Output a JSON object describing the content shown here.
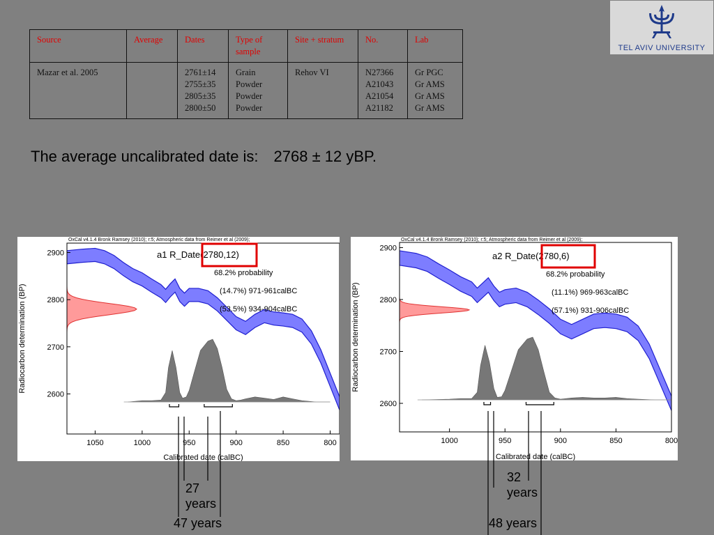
{
  "logo": {
    "text": "TEL AVIV UNIVERSITY",
    "color": "#1e3a8a",
    "icon": "menorah-emblem-icon"
  },
  "table": {
    "headers": [
      "Source",
      "Average",
      "Dates",
      "Type of sample",
      "Site + stratum",
      "No.",
      "Lab"
    ],
    "row": {
      "source": "Mazar et al. 2005",
      "average": "",
      "dates": [
        "2761±14",
        "2755±35",
        "2805±35",
        "2800±50"
      ],
      "types": [
        "Grain",
        "Powder",
        "Powder",
        "Powder"
      ],
      "site": "Rehov VI",
      "numbers": [
        "N27366",
        "A21043",
        "A21054",
        "A21182"
      ],
      "labs": [
        "Gr PGC",
        "Gr AMS",
        "Gr AMS",
        "Gr AMS"
      ]
    },
    "header_color": "#e00000"
  },
  "summary": {
    "label": "The average uncalibrated date is:",
    "value": "2768 ± 12 yBP."
  },
  "annotations": {
    "left_inner": "27 years",
    "left_outer": "47 years",
    "right_inner": "32 years",
    "right_outer": "48 years"
  },
  "chart_data": [
    {
      "type": "area",
      "credit": "OxCal v4.1.4 Bronk Ramsey (2010); r:5; Atmospheric data from Reimer et al (2009);",
      "title": "a1 R_Date(2780,12)",
      "title_prefix": "a1 R_Date",
      "title_highlight": "(2780,12)",
      "probability_label": "68.2% probability",
      "ranges": [
        "(14.7%) 971-961calBC",
        "(53.5%) 934-904calBC"
      ],
      "ylabel": "Radiocarbon determination (BP)",
      "xlabel": "Calibrated date (calBC)",
      "xlim": [
        1080,
        790
      ],
      "ylim": [
        2515,
        2920
      ],
      "x_ticks": [
        1050,
        1000,
        950,
        900,
        850,
        800
      ],
      "y_ticks": [
        2600,
        2700,
        2800,
        2900
      ],
      "radiocarbon": {
        "mean": 2780,
        "sd": 12
      },
      "calibration_curve": {
        "name": "IntCal09",
        "x": [
          1080,
          1065,
          1050,
          1040,
          1030,
          1020,
          1010,
          1000,
          990,
          980,
          975,
          970,
          965,
          960,
          955,
          950,
          940,
          930,
          920,
          910,
          900,
          890,
          880,
          870,
          860,
          850,
          840,
          830,
          820,
          810,
          800,
          790
        ],
        "y": [
          2890,
          2893,
          2895,
          2890,
          2880,
          2865,
          2852,
          2843,
          2830,
          2818,
          2808,
          2820,
          2830,
          2810,
          2800,
          2810,
          2810,
          2805,
          2790,
          2770,
          2750,
          2740,
          2755,
          2765,
          2760,
          2758,
          2755,
          2745,
          2720,
          2680,
          2630,
          2580
        ],
        "band_halfwidth": 14,
        "color": "#6666ff",
        "line_color": "#1f1fcf"
      },
      "calibrated_distribution": {
        "x": [
          1015,
          1000,
          990,
          980,
          975,
          972,
          968,
          964,
          960,
          957,
          953,
          950,
          945,
          938,
          930,
          925,
          920,
          915,
          910,
          905,
          900,
          895,
          890,
          880,
          870,
          860,
          850,
          840,
          830,
          815,
          800
        ],
        "density": [
          0,
          0.02,
          0.02,
          0.03,
          0.15,
          0.55,
          0.82,
          0.55,
          0.15,
          0.06,
          0.08,
          0.18,
          0.45,
          0.82,
          0.97,
          1.0,
          0.85,
          0.55,
          0.2,
          0.05,
          0.02,
          0.03,
          0.05,
          0.08,
          0.06,
          0.04,
          0.08,
          0.05,
          0.02,
          0,
          0
        ],
        "color": "#777777"
      },
      "brackets": [
        [
          971,
          961
        ],
        [
          934,
          904
        ]
      ],
      "marker_color": "#e03030"
    },
    {
      "type": "area",
      "credit": "OxCal v4.1.4 Bronk Ramsey (2010); r:5; Atmospheric data from Reimer et al (2009);",
      "title": "a2 R_Date(2780,6)",
      "title_prefix": "a2 R_Date",
      "title_highlight": "(2780,6)",
      "probability_label": "68.2% probability",
      "ranges": [
        "(11.1%) 969-963calBC",
        "(57.1%) 931-906calBC"
      ],
      "ylabel": "Radiocarbon determination (BP)",
      "xlabel": "Calibrated date (calBC)",
      "xlim": [
        1045,
        800
      ],
      "ylim": [
        2545,
        2910
      ],
      "x_ticks": [
        1000,
        950,
        900,
        850,
        800
      ],
      "y_ticks": [
        2600,
        2700,
        2800,
        2900
      ],
      "radiocarbon": {
        "mean": 2780,
        "sd": 6
      },
      "calibration_curve": {
        "name": "IntCal09",
        "x": [
          1045,
          1030,
          1020,
          1010,
          1000,
          990,
          980,
          975,
          970,
          965,
          960,
          955,
          950,
          940,
          930,
          920,
          910,
          900,
          890,
          880,
          870,
          860,
          850,
          840,
          830,
          820,
          810,
          800
        ],
        "y": [
          2880,
          2875,
          2868,
          2855,
          2843,
          2830,
          2820,
          2808,
          2818,
          2828,
          2812,
          2800,
          2805,
          2808,
          2800,
          2785,
          2768,
          2748,
          2738,
          2748,
          2758,
          2760,
          2758,
          2752,
          2735,
          2700,
          2650,
          2600
        ],
        "band_halfwidth": 14,
        "color": "#6666ff",
        "line_color": "#1f1fcf"
      },
      "calibrated_distribution": {
        "x": [
          1025,
          1000,
          990,
          980,
          975,
          972,
          968,
          964,
          960,
          957,
          953,
          950,
          945,
          938,
          930,
          925,
          920,
          915,
          910,
          905,
          900,
          895,
          890,
          880,
          870,
          860,
          850,
          840,
          830,
          815,
          800
        ],
        "density": [
          0,
          0.01,
          0.02,
          0.02,
          0.12,
          0.55,
          0.87,
          0.6,
          0.18,
          0.04,
          0.05,
          0.15,
          0.42,
          0.8,
          0.97,
          1.0,
          0.8,
          0.45,
          0.12,
          0.03,
          0.01,
          0.02,
          0.03,
          0.04,
          0.03,
          0.03,
          0.04,
          0.02,
          0.01,
          0,
          0
        ],
        "color": "#777777"
      },
      "brackets": [
        [
          969,
          963
        ],
        [
          931,
          906
        ]
      ],
      "marker_color": "#e03030"
    }
  ]
}
